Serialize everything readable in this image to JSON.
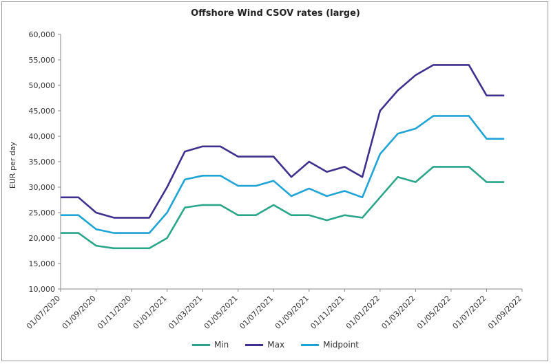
{
  "chart_data": {
    "type": "line",
    "title": "Offshore Wind CSOV rates (large)",
    "ylabel": "EUR per day",
    "xlabel": "",
    "ylim": [
      10000,
      60000
    ],
    "yticks": [
      "10,000",
      "15,000",
      "20,000",
      "25,000",
      "30,000",
      "35,000",
      "40,000",
      "45,000",
      "50,000",
      "55,000",
      "60,000"
    ],
    "xticks": [
      "01/07/2020",
      "01/09/2020",
      "01/11/2020",
      "01/01/2021",
      "01/03/2021",
      "01/05/2021",
      "01/07/2021",
      "01/09/2021",
      "01/11/2021",
      "01/01/2022",
      "01/03/2022",
      "01/05/2022",
      "01/07/2022",
      "01/09/2022"
    ],
    "x": [
      "01/07/2020",
      "01/08/2020",
      "01/09/2020",
      "01/10/2020",
      "01/11/2020",
      "01/12/2020",
      "01/01/2021",
      "01/02/2021",
      "01/03/2021",
      "01/04/2021",
      "01/05/2021",
      "01/06/2021",
      "01/07/2021",
      "01/08/2021",
      "01/09/2021",
      "01/10/2021",
      "01/11/2021",
      "01/12/2021",
      "01/01/2022",
      "01/02/2022",
      "01/03/2022",
      "01/04/2022",
      "01/05/2022",
      "01/06/2022",
      "01/07/2022",
      "01/08/2022"
    ],
    "series": [
      {
        "name": "Min",
        "color": "#2aa58a",
        "values": [
          21000,
          21000,
          18500,
          18000,
          18000,
          18000,
          20000,
          26000,
          26500,
          26500,
          24500,
          24500,
          26500,
          24500,
          24500,
          23500,
          24500,
          24000,
          28000,
          32000,
          31000,
          34000,
          34000,
          34000,
          31000,
          31000
        ]
      },
      {
        "name": "Max",
        "color": "#3f2f8f",
        "values": [
          28000,
          28000,
          25000,
          24000,
          24000,
          24000,
          30000,
          37000,
          38000,
          38000,
          36000,
          36000,
          36000,
          32000,
          35000,
          33000,
          34000,
          32000,
          45000,
          49000,
          52000,
          54000,
          54000,
          54000,
          48000,
          48000
        ]
      },
      {
        "name": "Midpoint",
        "color": "#20a4d6",
        "values": [
          24500,
          24500,
          21750,
          21000,
          21000,
          21000,
          25000,
          31500,
          32250,
          32250,
          30250,
          30250,
          31250,
          28250,
          29750,
          28250,
          29250,
          28000,
          36500,
          40500,
          41500,
          44000,
          44000,
          44000,
          39500,
          39500
        ]
      }
    ],
    "legend_position": "bottom",
    "grid": false
  }
}
